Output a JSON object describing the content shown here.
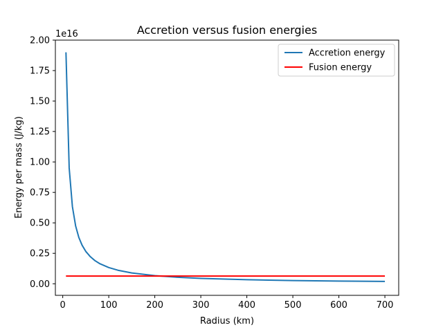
{
  "chart_data": {
    "type": "line",
    "title": "Accretion versus fusion energies",
    "xlabel": "Radius (km)",
    "ylabel": "Energy per mass (J/kg)",
    "y_offset_label": "1e16",
    "xlim": [
      -16,
      730
    ],
    "ylim": [
      -0.095,
      2.0
    ],
    "x_ticks": [
      0,
      100,
      200,
      300,
      400,
      500,
      600,
      700
    ],
    "x_tick_labels": [
      "0",
      "100",
      "200",
      "300",
      "400",
      "500",
      "600",
      "700"
    ],
    "y_ticks": [
      0.0,
      0.25,
      0.5,
      0.75,
      1.0,
      1.25,
      1.5,
      1.75,
      2.0
    ],
    "y_tick_labels": [
      "0.00",
      "0.25",
      "0.50",
      "0.75",
      "1.00",
      "1.25",
      "1.50",
      "1.75",
      "2.00"
    ],
    "grid": false,
    "legend_position": "top-right",
    "series": [
      {
        "name": "Accretion energy",
        "color": "#1f77b4",
        "x": [
          7,
          14,
          21,
          28,
          35,
          42,
          50,
          60,
          70,
          80,
          100,
          120,
          150,
          200,
          250,
          300,
          400,
          500,
          600,
          700
        ],
        "y": [
          1.9,
          0.95,
          0.633,
          0.475,
          0.38,
          0.317,
          0.266,
          0.222,
          0.19,
          0.166,
          0.133,
          0.111,
          0.0887,
          0.0665,
          0.0532,
          0.0443,
          0.0333,
          0.0266,
          0.0222,
          0.019
        ]
      },
      {
        "name": "Fusion energy",
        "color": "#ff0000",
        "x": [
          7,
          700
        ],
        "y": [
          0.063,
          0.063
        ]
      }
    ]
  }
}
